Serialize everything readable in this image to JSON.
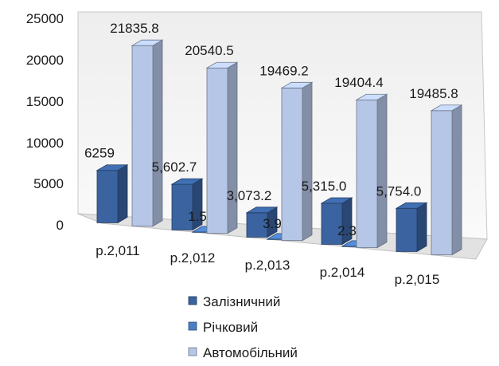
{
  "chart_data": {
    "type": "bar",
    "title": "",
    "xlabel": "",
    "ylabel": "",
    "categories": [
      "р.2,011",
      "р.2,012",
      "р.2,013",
      "р.2,014",
      "р.2,015"
    ],
    "ylim": [
      0,
      25000
    ],
    "yticks": [
      "0",
      "5000",
      "10000",
      "15000",
      "20000",
      "25000"
    ],
    "grid": false,
    "legend_position": "bottom",
    "series": [
      {
        "name": "Залізничний",
        "color": "#3a63a0",
        "values": [
          6259,
          5602.7,
          3073.2,
          5315.0,
          5754.0
        ],
        "labels": [
          "6259",
          "5,602.7",
          "3,073.2",
          "5,315.0",
          "5,754.0"
        ]
      },
      {
        "name": "Річковий",
        "color": "#4a7fc4",
        "values": [
          null,
          1.5,
          3.9,
          2.3,
          null
        ],
        "labels": [
          "",
          "1.5",
          "3.9",
          "2.3",
          ""
        ]
      },
      {
        "name": "Автомобільний",
        "color": "#b6c6e6",
        "values": [
          21835.8,
          20540.5,
          19469.2,
          19404.4,
          19485.8
        ],
        "labels": [
          "21835.8",
          "20540.5",
          "19469.2",
          "19404.4",
          "19485.8"
        ]
      }
    ]
  }
}
